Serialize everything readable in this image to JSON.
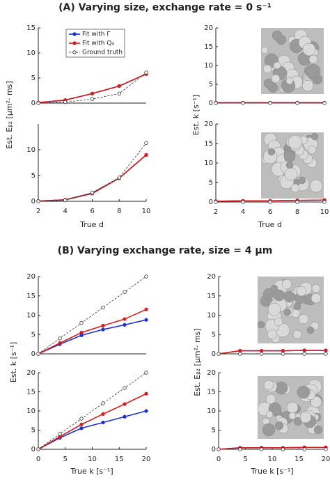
{
  "figure": {
    "panel_titles": [
      "(A) Varying size, exchange rate = 0 s⁻¹",
      "(B) Varying exchange rate, size = 4 μm"
    ],
    "y_labels": [
      "Est. Eᵦ₂ [μm²· ms]",
      "Est. k [s⁻¹]",
      "Est. k [s⁻¹]",
      "Est. Eᵦ₂ [μm²· ms]"
    ],
    "x_labels": [
      "True d",
      "True d",
      "True k [s⁻¹]",
      "True k [s⁻¹]"
    ]
  },
  "chart_data": [
    {
      "type": "line",
      "x": [
        2,
        4,
        6,
        8,
        10
      ],
      "xlim": [
        2,
        10
      ],
      "ylim": [
        0,
        15
      ],
      "yticks": [
        0,
        5,
        10,
        15
      ],
      "legend": "upper left",
      "series": [
        {
          "name": "Fit with Γ",
          "color": "#1f2fd0",
          "style": "solid",
          "marker": "filled",
          "values": [
            0.1,
            0.6,
            1.9,
            3.4,
            5.8
          ]
        },
        {
          "name": "Fit with Q₄",
          "color": "#d01f1f",
          "style": "solid",
          "marker": "filled",
          "values": [
            0.1,
            0.6,
            1.9,
            3.4,
            5.8
          ]
        },
        {
          "name": "Ground truth",
          "color": "#333333",
          "style": "dashed",
          "marker": "open",
          "values": [
            0,
            0.2,
            0.8,
            1.9,
            6.1
          ]
        }
      ]
    },
    {
      "type": "line",
      "x": [
        2,
        4,
        6,
        8,
        10
      ],
      "xlim": [
        2,
        10
      ],
      "xticks": [
        2,
        4,
        6,
        8,
        10
      ],
      "ylim": [
        0,
        15
      ],
      "yticks": [
        0,
        5,
        10
      ],
      "series": [
        {
          "color": "#1f2fd0",
          "style": "solid",
          "marker": "filled",
          "values": [
            0.05,
            0.3,
            1.6,
            4.5,
            9.0
          ]
        },
        {
          "color": "#d01f1f",
          "style": "solid",
          "marker": "filled",
          "values": [
            0.05,
            0.3,
            1.5,
            4.5,
            9.0
          ]
        },
        {
          "color": "#333333",
          "style": "dashed",
          "marker": "open",
          "values": [
            0,
            0.2,
            1.7,
            4.6,
            11.3
          ]
        }
      ]
    },
    {
      "type": "line",
      "x": [
        2,
        4,
        6,
        8,
        10
      ],
      "xlim": [
        2,
        10
      ],
      "ylim": [
        0,
        20
      ],
      "yticks": [
        0,
        5,
        10,
        15,
        20
      ],
      "series": [
        {
          "color": "#1f2fd0",
          "style": "solid",
          "marker": "filled",
          "values": [
            0.1,
            0.1,
            0.1,
            0.1,
            0.1
          ]
        },
        {
          "color": "#d01f1f",
          "style": "solid",
          "marker": "filled",
          "values": [
            0.1,
            0.1,
            0.1,
            0.1,
            0.1
          ]
        },
        {
          "color": "#333333",
          "style": "dashed",
          "marker": "open",
          "values": [
            0,
            0,
            0,
            0,
            0
          ]
        }
      ]
    },
    {
      "type": "line",
      "x": [
        2,
        4,
        6,
        8,
        10
      ],
      "xlim": [
        2,
        10
      ],
      "xticks": [
        2,
        4,
        6,
        8,
        10
      ],
      "ylim": [
        0,
        20
      ],
      "yticks": [
        0,
        5,
        10,
        15,
        20
      ],
      "series": [
        {
          "color": "#1f2fd0",
          "style": "solid",
          "marker": "filled",
          "values": [
            0.2,
            0.3,
            0.3,
            0.4,
            0.5
          ]
        },
        {
          "color": "#d01f1f",
          "style": "solid",
          "marker": "filled",
          "values": [
            0.2,
            0.3,
            0.3,
            0.4,
            0.5
          ]
        },
        {
          "color": "#333333",
          "style": "dashed",
          "marker": "open",
          "values": [
            0,
            0,
            0,
            0,
            0
          ]
        }
      ]
    },
    {
      "type": "line",
      "x": [
        0,
        4,
        8,
        12,
        16,
        20
      ],
      "xlim": [
        0,
        20
      ],
      "ylim": [
        0,
        20
      ],
      "yticks": [
        0,
        5,
        10,
        15,
        20
      ],
      "series": [
        {
          "color": "#1f2fd0",
          "style": "solid",
          "marker": "filled",
          "values": [
            0,
            2.5,
            4.8,
            6.3,
            7.5,
            8.8
          ]
        },
        {
          "color": "#d01f1f",
          "style": "solid",
          "marker": "filled",
          "values": [
            0,
            2.8,
            5.5,
            7.3,
            9.0,
            11.5
          ]
        },
        {
          "color": "#333333",
          "style": "dashed",
          "marker": "open",
          "values": [
            0,
            4,
            8,
            12,
            16,
            20
          ]
        }
      ]
    },
    {
      "type": "line",
      "x": [
        0,
        4,
        8,
        12,
        16,
        20
      ],
      "xlim": [
        0,
        20
      ],
      "xticks": [
        0,
        5,
        10,
        15,
        20
      ],
      "ylim": [
        0,
        20
      ],
      "yticks": [
        0,
        5,
        10,
        15,
        20
      ],
      "series": [
        {
          "color": "#1f2fd0",
          "style": "solid",
          "marker": "filled",
          "values": [
            0,
            3,
            5.5,
            7,
            8.5,
            10
          ]
        },
        {
          "color": "#d01f1f",
          "style": "solid",
          "marker": "filled",
          "values": [
            0,
            3.3,
            6.5,
            9.2,
            11.8,
            14.5
          ]
        },
        {
          "color": "#333333",
          "style": "dashed",
          "marker": "open",
          "values": [
            0,
            4,
            8,
            12,
            16,
            20
          ]
        }
      ]
    },
    {
      "type": "line",
      "x": [
        0,
        4,
        8,
        12,
        16,
        20
      ],
      "xlim": [
        0,
        20
      ],
      "ylim": [
        0,
        20
      ],
      "yticks": [
        0,
        5,
        10,
        15,
        20
      ],
      "series": [
        {
          "color": "#1f2fd0",
          "style": "solid",
          "marker": "filled",
          "values": [
            0,
            0.8,
            0.8,
            0.8,
            0.9,
            0.9
          ]
        },
        {
          "color": "#d01f1f",
          "style": "solid",
          "marker": "filled",
          "values": [
            0,
            0.8,
            0.8,
            0.8,
            0.9,
            0.9
          ]
        },
        {
          "color": "#333333",
          "style": "dashed",
          "marker": "open",
          "values": [
            0,
            0,
            0,
            0,
            0,
            0
          ]
        }
      ]
    },
    {
      "type": "line",
      "x": [
        0,
        4,
        8,
        12,
        16,
        20
      ],
      "xlim": [
        0,
        20
      ],
      "xticks": [
        0,
        5,
        10,
        15,
        20
      ],
      "ylim": [
        0,
        20
      ],
      "yticks": [
        0,
        5,
        10,
        15,
        20
      ],
      "series": [
        {
          "color": "#1f2fd0",
          "style": "solid",
          "marker": "filled",
          "values": [
            0,
            0.4,
            0.4,
            0.4,
            0.5,
            0.5
          ]
        },
        {
          "color": "#d01f1f",
          "style": "solid",
          "marker": "filled",
          "values": [
            0,
            0.4,
            0.4,
            0.4,
            0.5,
            0.5
          ]
        },
        {
          "color": "#333333",
          "style": "dashed",
          "marker": "open",
          "values": [
            0,
            0,
            0,
            0,
            0,
            0
          ]
        }
      ]
    }
  ]
}
